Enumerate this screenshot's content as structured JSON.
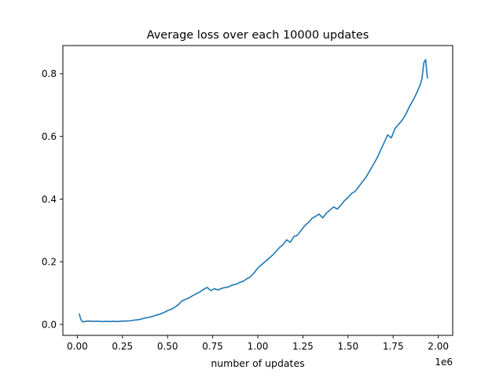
{
  "chart_data": {
    "type": "line",
    "title": "Average loss over each 10000 updates",
    "xlabel": "number of updates",
    "ylabel": "",
    "x_offset_label": "1e6",
    "xlim": [
      -0.08,
      2.08
    ],
    "ylim": [
      -0.035,
      0.89
    ],
    "x_ticks": [
      0.0,
      0.25,
      0.5,
      0.75,
      1.0,
      1.25,
      1.5,
      1.75,
      2.0
    ],
    "x_tick_labels": [
      "0.00",
      "0.25",
      "0.50",
      "0.75",
      "1.00",
      "1.25",
      "1.50",
      "1.75",
      "2.00"
    ],
    "y_ticks": [
      0.0,
      0.2,
      0.4,
      0.6,
      0.8
    ],
    "y_tick_labels": [
      "0.0",
      "0.2",
      "0.4",
      "0.6",
      "0.8"
    ],
    "grid": false,
    "legend": "none",
    "series": [
      {
        "color": "#1f77b4",
        "x": [
          0.01,
          0.02,
          0.03,
          0.04,
          0.06,
          0.08,
          0.1,
          0.12,
          0.14,
          0.16,
          0.18,
          0.2,
          0.22,
          0.24,
          0.26,
          0.28,
          0.3,
          0.32,
          0.34,
          0.36,
          0.38,
          0.4,
          0.42,
          0.44,
          0.46,
          0.48,
          0.5,
          0.52,
          0.54,
          0.56,
          0.58,
          0.6,
          0.62,
          0.64,
          0.66,
          0.68,
          0.7,
          0.72,
          0.74,
          0.76,
          0.78,
          0.8,
          0.82,
          0.84,
          0.86,
          0.88,
          0.9,
          0.92,
          0.94,
          0.96,
          0.98,
          1.0,
          1.02,
          1.04,
          1.06,
          1.08,
          1.1,
          1.12,
          1.14,
          1.16,
          1.18,
          1.2,
          1.22,
          1.24,
          1.26,
          1.28,
          1.3,
          1.32,
          1.34,
          1.36,
          1.38,
          1.4,
          1.42,
          1.44,
          1.46,
          1.48,
          1.5,
          1.52,
          1.54,
          1.56,
          1.58,
          1.6,
          1.62,
          1.64,
          1.66,
          1.68,
          1.7,
          1.72,
          1.74,
          1.76,
          1.78,
          1.8,
          1.82,
          1.84,
          1.86,
          1.88,
          1.9,
          1.91,
          1.92,
          1.93,
          1.94
        ],
        "y": [
          0.035,
          0.015,
          0.008,
          0.009,
          0.011,
          0.01,
          0.01,
          0.01,
          0.009,
          0.01,
          0.009,
          0.01,
          0.009,
          0.01,
          0.011,
          0.011,
          0.012,
          0.014,
          0.015,
          0.018,
          0.021,
          0.023,
          0.026,
          0.03,
          0.033,
          0.038,
          0.044,
          0.048,
          0.055,
          0.063,
          0.075,
          0.08,
          0.085,
          0.092,
          0.098,
          0.104,
          0.112,
          0.118,
          0.108,
          0.114,
          0.11,
          0.115,
          0.118,
          0.12,
          0.126,
          0.128,
          0.134,
          0.138,
          0.146,
          0.152,
          0.165,
          0.18,
          0.19,
          0.2,
          0.21,
          0.22,
          0.232,
          0.245,
          0.255,
          0.27,
          0.262,
          0.28,
          0.285,
          0.3,
          0.315,
          0.325,
          0.338,
          0.345,
          0.352,
          0.34,
          0.355,
          0.365,
          0.375,
          0.368,
          0.38,
          0.395,
          0.405,
          0.418,
          0.425,
          0.44,
          0.455,
          0.47,
          0.49,
          0.51,
          0.53,
          0.555,
          0.58,
          0.605,
          0.595,
          0.625,
          0.638,
          0.652,
          0.67,
          0.695,
          0.715,
          0.738,
          0.765,
          0.785,
          0.835,
          0.845,
          0.785
        ]
      }
    ]
  }
}
